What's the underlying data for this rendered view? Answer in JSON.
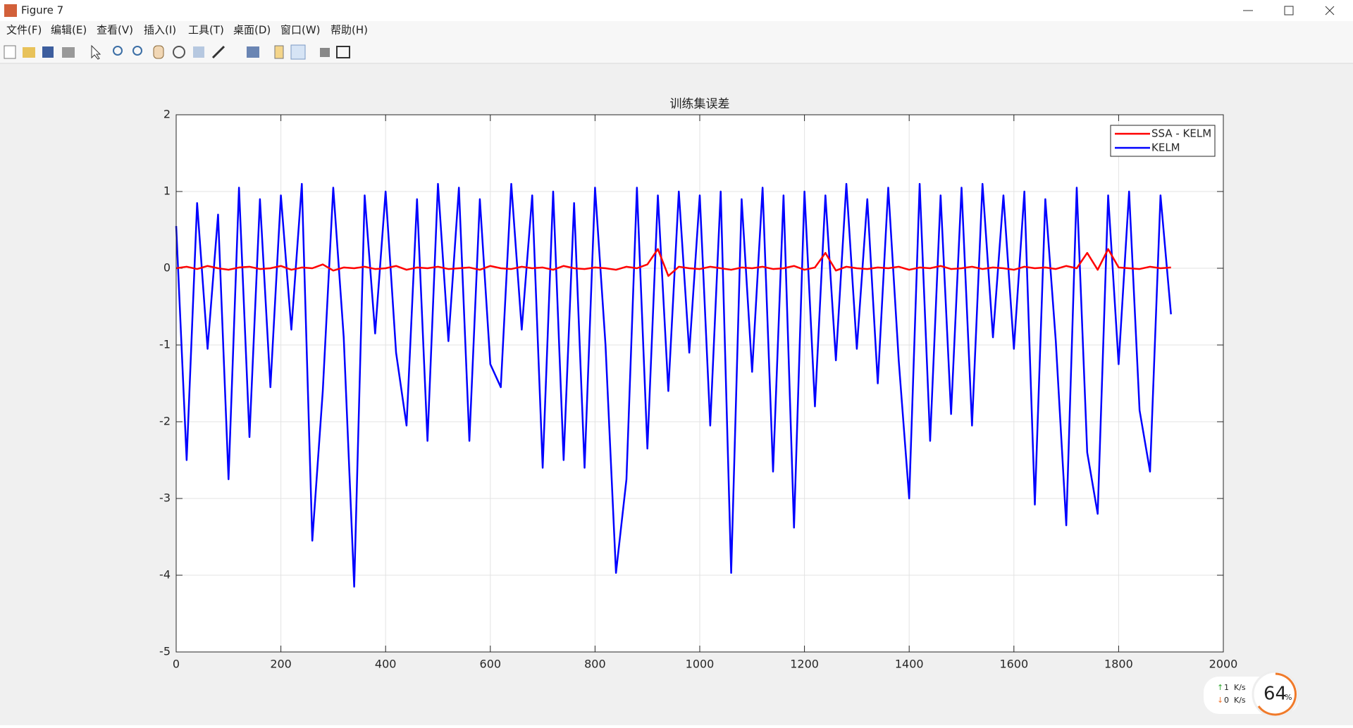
{
  "window": {
    "title": "Figure 7",
    "menus": [
      "文件(F)",
      "编辑(E)",
      "查看(V)",
      "插入(I)",
      "工具(T)",
      "桌面(D)",
      "窗口(W)",
      "帮助(H)"
    ]
  },
  "chart_data": {
    "type": "line",
    "title": "训练集误差",
    "x": [
      0,
      20,
      40,
      60,
      80,
      100,
      120,
      140,
      160,
      180,
      200,
      220,
      240,
      260,
      280,
      300,
      320,
      340,
      360,
      380,
      400,
      420,
      440,
      460,
      480,
      500,
      520,
      540,
      560,
      580,
      600,
      620,
      640,
      660,
      680,
      700,
      720,
      740,
      760,
      780,
      800,
      820,
      840,
      860,
      880,
      900,
      920,
      940,
      960,
      980,
      1000,
      1020,
      1040,
      1060,
      1080,
      1100,
      1120,
      1140,
      1160,
      1180,
      1200,
      1220,
      1240,
      1260,
      1280,
      1300,
      1320,
      1340,
      1360,
      1380,
      1400,
      1420,
      1440,
      1460,
      1480,
      1500,
      1520,
      1540,
      1560,
      1580,
      1600,
      1620,
      1640,
      1660,
      1680,
      1700,
      1720,
      1740,
      1760,
      1780,
      1800,
      1820,
      1840,
      1860,
      1880,
      1900
    ],
    "series": [
      {
        "name": "SSA - KELM",
        "color": "#ff0000",
        "values": [
          0,
          0.02,
          -0.01,
          0.03,
          0,
          -0.02,
          0.01,
          0.02,
          -0.01,
          0,
          0.03,
          -0.02,
          0.01,
          0,
          0.05,
          -0.03,
          0.01,
          0,
          0.02,
          -0.01,
          0,
          0.03,
          -0.02,
          0.01,
          0,
          0.02,
          -0.01,
          0,
          0.01,
          -0.02,
          0.03,
          0,
          -0.01,
          0.02,
          0,
          0.01,
          -0.02,
          0.03,
          0,
          -0.01,
          0.01,
          0,
          -0.02,
          0.02,
          0,
          0.05,
          0.25,
          -0.1,
          0.02,
          0,
          -0.01,
          0.02,
          0,
          -0.02,
          0.01,
          0,
          0.02,
          -0.01,
          0,
          0.03,
          -0.02,
          0.01,
          0.2,
          -0.03,
          0.02,
          0,
          -0.01,
          0.01,
          0,
          0.02,
          -0.02,
          0.01,
          0,
          0.03,
          -0.01,
          0,
          0.02,
          -0.01,
          0.01,
          0,
          -0.02,
          0.02,
          0,
          0.01,
          -0.01,
          0.03,
          0,
          0.2,
          -0.02,
          0.25,
          0.01,
          0,
          -0.01,
          0.02,
          0,
          0.01
        ]
      },
      {
        "name": "KELM",
        "color": "#0000ff",
        "values": [
          0.55,
          -2.5,
          0.85,
          -1.05,
          0.7,
          -2.75,
          1.05,
          -2.2,
          0.9,
          -1.55,
          0.95,
          -0.8,
          1.1,
          -3.55,
          -1.6,
          1.05,
          -0.9,
          -4.15,
          0.95,
          -0.85,
          1.0,
          -1.1,
          -2.05,
          0.9,
          -2.25,
          1.1,
          -0.95,
          1.05,
          -2.25,
          0.9,
          -1.25,
          -1.55,
          1.1,
          -0.8,
          0.95,
          -2.6,
          1.0,
          -2.5,
          0.85,
          -2.6,
          1.05,
          -1.0,
          -3.97,
          -2.75,
          1.05,
          -2.35,
          0.95,
          -1.6,
          1.0,
          -1.1,
          0.95,
          -2.05,
          1.0,
          -3.97,
          0.9,
          -1.35,
          1.05,
          -2.65,
          0.95,
          -3.38,
          1.0,
          -1.8,
          0.95,
          -1.2,
          1.1,
          -1.05,
          0.9,
          -1.5,
          1.05,
          -1.2,
          -3.0,
          1.1,
          -2.25,
          0.95,
          -1.9,
          1.05,
          -2.05,
          1.1,
          -0.9,
          0.95,
          -1.05,
          1.0,
          -3.08,
          0.9,
          -0.95,
          -3.35,
          1.05,
          -2.4,
          -3.2,
          0.95,
          -1.25,
          1.0,
          -1.85,
          -2.65,
          0.95,
          -0.6
        ]
      }
    ],
    "xlim": [
      0,
      2000
    ],
    "xticks": [
      0,
      200,
      400,
      600,
      800,
      1000,
      1200,
      1400,
      1600,
      1800,
      2000
    ],
    "ylim": [
      -5,
      2
    ],
    "yticks": [
      -5,
      -4,
      -3,
      -2,
      -1,
      0,
      1,
      2
    ],
    "grid": true,
    "legend": "upper right"
  },
  "widget": {
    "up": "1",
    "down": "0",
    "unit": "K/s",
    "percent": "64",
    "percent_sign": "%"
  }
}
